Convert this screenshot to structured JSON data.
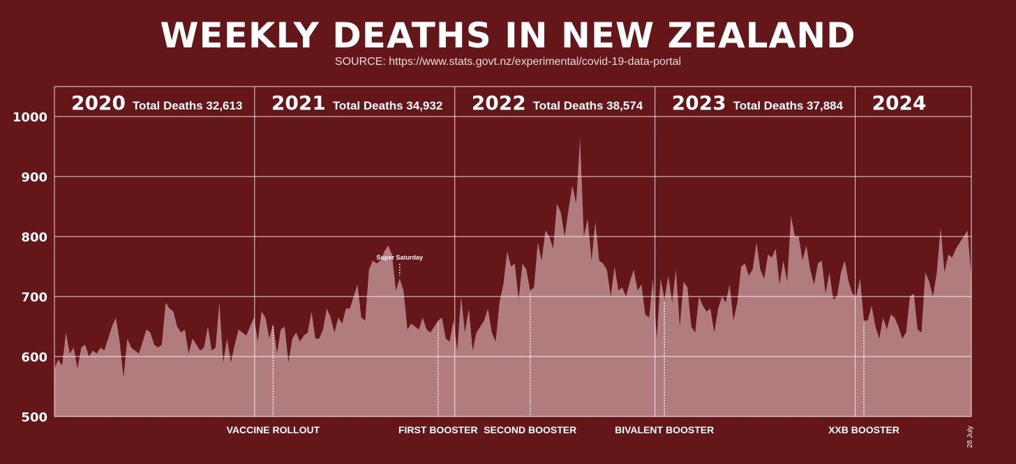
{
  "chart_data": {
    "type": "area",
    "title": "WEEKLY DEATHS IN NEW ZEALAND",
    "subtitle": "SOURCE: https://www.stats.govt.nz/experimental/covid-19-data-portal",
    "ylim": [
      500,
      1050
    ],
    "yticks": [
      500,
      600,
      700,
      800,
      900,
      1000
    ],
    "grid": true,
    "area_color": "#b07c7e",
    "background_color": "#641618",
    "years": [
      {
        "label": "2020",
        "total": "Total Deaths 32,613"
      },
      {
        "label": "2021",
        "total": "Total Deaths 34,932"
      },
      {
        "label": "2022",
        "total": "Total Deaths 38,574"
      },
      {
        "label": "2023",
        "total": "Total Deaths 37,884"
      },
      {
        "label": "2024",
        "total": ""
      }
    ],
    "events": [
      {
        "label": "VACCINE ROLLOUT",
        "week": 57
      },
      {
        "label": "FIRST BOOSTER",
        "week": 100
      },
      {
        "label": "SECOND BOOSTER",
        "week": 124
      },
      {
        "label": "BIVALENT BOOSTER",
        "week": 159
      },
      {
        "label": "XXB BOOSTER",
        "week": 211
      }
    ],
    "annotation": {
      "label": "Super Saturday",
      "week": 90
    },
    "end_date": "28 July",
    "values": [
      580,
      595,
      585,
      640,
      605,
      615,
      580,
      615,
      620,
      600,
      610,
      605,
      615,
      610,
      630,
      650,
      665,
      625,
      565,
      630,
      615,
      610,
      605,
      625,
      645,
      640,
      620,
      615,
      620,
      690,
      680,
      675,
      650,
      640,
      645,
      605,
      630,
      620,
      610,
      615,
      650,
      610,
      615,
      690,
      590,
      630,
      590,
      620,
      645,
      640,
      635,
      650,
      665,
      625,
      675,
      665,
      630,
      655,
      605,
      645,
      650,
      590,
      630,
      640,
      625,
      635,
      640,
      675,
      630,
      630,
      645,
      680,
      665,
      640,
      665,
      655,
      680,
      680,
      700,
      720,
      665,
      660,
      745,
      760,
      755,
      760,
      775,
      785,
      770,
      710,
      730,
      710,
      645,
      655,
      650,
      645,
      665,
      645,
      640,
      650,
      660,
      665,
      630,
      625,
      660,
      610,
      700,
      640,
      680,
      610,
      640,
      650,
      660,
      680,
      640,
      625,
      690,
      720,
      775,
      750,
      755,
      695,
      755,
      745,
      710,
      715,
      790,
      760,
      810,
      800,
      780,
      855,
      840,
      800,
      845,
      885,
      855,
      965,
      800,
      830,
      760,
      825,
      760,
      755,
      745,
      700,
      750,
      710,
      715,
      700,
      725,
      745,
      710,
      720,
      670,
      665,
      730,
      630,
      730,
      695,
      735,
      690,
      745,
      650,
      725,
      715,
      650,
      640,
      700,
      685,
      675,
      680,
      640,
      680,
      700,
      690,
      720,
      660,
      690,
      750,
      755,
      735,
      745,
      790,
      745,
      730,
      770,
      765,
      780,
      720,
      760,
      725,
      835,
      800,
      800,
      760,
      785,
      745,
      720,
      755,
      760,
      705,
      740,
      695,
      700,
      740,
      760,
      725,
      705,
      700,
      730,
      660,
      660,
      685,
      650,
      630,
      665,
      645,
      670,
      665,
      650,
      630,
      640,
      700,
      705,
      645,
      640,
      740,
      725,
      700,
      740,
      815,
      740,
      770,
      765,
      780,
      790,
      800,
      810,
      730
    ]
  }
}
